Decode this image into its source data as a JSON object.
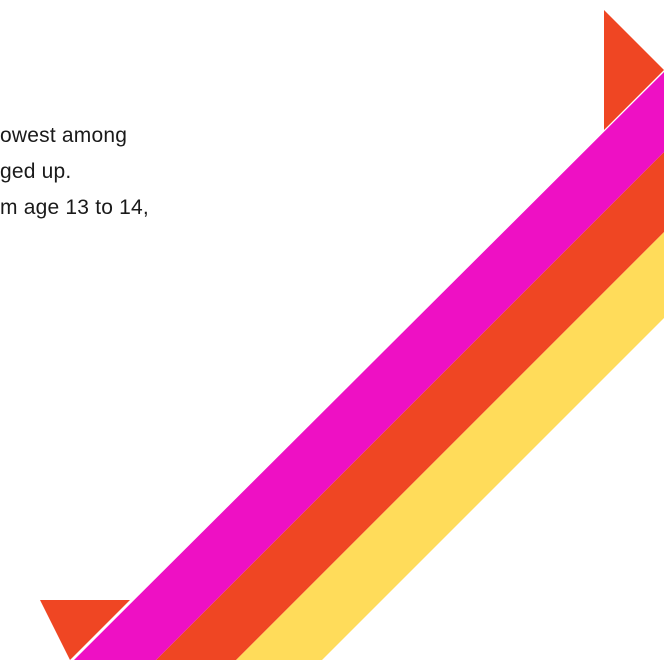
{
  "body_text": {
    "lines": [
      "owest among",
      "ged up.",
      "m age 13 to 14,"
    ]
  },
  "decoration": {
    "name": "rainbow-ribbon",
    "colors": {
      "orange_red": "#EF4623",
      "magenta": "#EE10C4",
      "yellow": "#FFDC5A"
    }
  }
}
